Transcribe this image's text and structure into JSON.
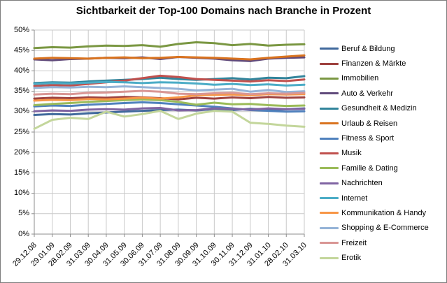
{
  "chart_data": {
    "type": "line",
    "title": "Sichtbarkeit der Top-100 Domains nach Branche in Prozent",
    "x": [
      "29.12.08",
      "29.01.09",
      "28.02.09",
      "31.03.09",
      "30.04.09",
      "31.05.09",
      "30.06.09",
      "31.07.09",
      "31.08.09",
      "30.09.09",
      "31.10.09",
      "30.11.09",
      "31.12.09",
      "31.01.10",
      "28.02.10",
      "31.03.10"
    ],
    "xlabel": "",
    "ylabel": "",
    "y_axis": {
      "min": 0,
      "max": 50,
      "step": 5,
      "format": "percent",
      "tick_labels": [
        "0%",
        "5%",
        "10%",
        "15%",
        "20%",
        "25%",
        "30%",
        "35%",
        "40%",
        "45%",
        "50%"
      ]
    },
    "grid": true,
    "legend_position": "right",
    "series": [
      {
        "name": "Beruf & Bildung",
        "color": "#40699C",
        "values": [
          29.2,
          29.4,
          29.3,
          29.6,
          29.8,
          30.0,
          30.2,
          30.4,
          30.5,
          30.3,
          30.6,
          30.4,
          30.7,
          30.5,
          30.6,
          30.8
        ]
      },
      {
        "name": "Finanzen & Märkte",
        "color": "#9E413E",
        "values": [
          33.2,
          33.4,
          33.3,
          33.5,
          33.4,
          33.6,
          33.5,
          33.3,
          33.0,
          33.4,
          33.2,
          33.5,
          33.3,
          33.6,
          33.4,
          33.5
        ]
      },
      {
        "name": "Immobilien",
        "color": "#7A9742",
        "values": [
          45.6,
          45.8,
          45.7,
          46.0,
          46.2,
          46.1,
          46.3,
          45.9,
          46.6,
          47.0,
          46.8,
          46.3,
          46.6,
          46.2,
          46.4,
          46.5
        ]
      },
      {
        "name": "Auto & Verkehr",
        "color": "#604A7B",
        "values": [
          42.8,
          42.6,
          42.9,
          43.0,
          43.2,
          43.1,
          43.3,
          42.9,
          43.4,
          43.2,
          43.0,
          42.6,
          42.4,
          43.0,
          43.2,
          43.3
        ]
      },
      {
        "name": "Gesundheit & Medizin",
        "color": "#31849B",
        "values": [
          37.0,
          37.2,
          37.1,
          37.4,
          37.6,
          37.8,
          38.0,
          38.3,
          38.0,
          37.8,
          38.0,
          38.2,
          37.9,
          38.3,
          38.2,
          38.7
        ]
      },
      {
        "name": "Urlaub & Reisen",
        "color": "#D9731F",
        "values": [
          43.0,
          43.2,
          43.1,
          43.0,
          43.2,
          43.3,
          43.1,
          43.2,
          43.4,
          43.3,
          43.2,
          43.0,
          42.8,
          43.2,
          43.5,
          43.8
        ]
      },
      {
        "name": "Fitness & Sport",
        "color": "#4F81BD",
        "values": [
          31.3,
          31.5,
          31.4,
          31.7,
          31.9,
          32.1,
          32.3,
          32.1,
          31.8,
          31.5,
          31.2,
          30.8,
          30.4,
          30.2,
          30.0,
          30.1
        ]
      },
      {
        "name": "Musik",
        "color": "#C0504D",
        "values": [
          36.3,
          36.5,
          36.4,
          36.8,
          37.2,
          37.6,
          38.2,
          38.8,
          38.5,
          38.0,
          37.8,
          37.6,
          37.4,
          37.7,
          37.5,
          37.9
        ]
      },
      {
        "name": "Familie & Dating",
        "color": "#9BBB59",
        "values": [
          31.6,
          31.9,
          32.1,
          32.4,
          32.6,
          32.8,
          33.0,
          32.8,
          32.4,
          31.7,
          32.2,
          31.8,
          31.9,
          31.6,
          31.4,
          31.5
        ]
      },
      {
        "name": "Nachrichten",
        "color": "#8064A2",
        "values": [
          30.1,
          30.3,
          30.2,
          30.5,
          30.6,
          30.5,
          30.8,
          30.9,
          30.3,
          30.4,
          30.8,
          30.7,
          30.5,
          30.8,
          30.6,
          30.7
        ]
      },
      {
        "name": "Internet",
        "color": "#4BACC6",
        "values": [
          36.8,
          37.0,
          36.9,
          37.1,
          37.3,
          37.2,
          37.0,
          37.2,
          37.1,
          36.9,
          36.6,
          36.8,
          36.5,
          36.7,
          36.4,
          36.6
        ]
      },
      {
        "name": "Kommunikation & Handy",
        "color": "#F79646",
        "values": [
          32.7,
          32.9,
          32.8,
          33.1,
          33.0,
          33.2,
          33.4,
          33.2,
          33.5,
          34.0,
          34.1,
          34.2,
          34.0,
          34.3,
          34.2,
          34.3
        ]
      },
      {
        "name": "Shopping & E-Commerce",
        "color": "#95B3D7",
        "values": [
          35.8,
          36.0,
          35.9,
          36.1,
          36.0,
          36.2,
          36.0,
          35.8,
          35.6,
          35.2,
          35.4,
          35.6,
          34.9,
          35.3,
          34.8,
          35.0
        ]
      },
      {
        "name": "Freizeit",
        "color": "#D99694",
        "values": [
          34.2,
          34.4,
          34.3,
          34.6,
          34.7,
          34.9,
          35.1,
          34.9,
          34.4,
          34.3,
          34.5,
          34.6,
          34.3,
          34.5,
          34.4,
          34.6
        ]
      },
      {
        "name": "Erotik",
        "color": "#C3D69B",
        "values": [
          25.8,
          28.0,
          28.5,
          28.2,
          30.0,
          28.8,
          29.4,
          30.2,
          28.2,
          29.5,
          30.2,
          30.0,
          27.3,
          27.0,
          26.6,
          26.3
        ]
      }
    ]
  },
  "colors": {
    "background": "#FFFFFF",
    "border": "#7D7D7D",
    "grid": "#C9C9C9",
    "axis": "#8C8C8C",
    "text": "#000000"
  }
}
